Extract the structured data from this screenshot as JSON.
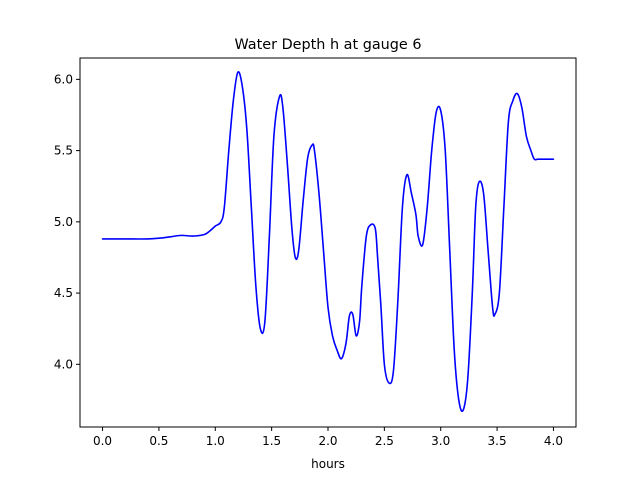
{
  "chart_data": {
    "type": "line",
    "title": "Water Depth h at gauge 6",
    "xlabel": "hours",
    "ylabel": "",
    "xlim": [
      -0.2,
      4.2
    ],
    "ylim": [
      3.56,
      6.15
    ],
    "xticks": [
      0.0,
      0.5,
      1.0,
      1.5,
      2.0,
      2.5,
      3.0,
      3.5,
      4.0
    ],
    "xtick_labels": [
      "0.0",
      "0.5",
      "1.0",
      "1.5",
      "2.0",
      "2.5",
      "3.0",
      "3.5",
      "4.0"
    ],
    "yticks": [
      4.0,
      4.5,
      5.0,
      5.5,
      6.0
    ],
    "ytick_labels": [
      "4.0",
      "4.5",
      "5.0",
      "5.5",
      "6.0"
    ],
    "grid": false,
    "series": [
      {
        "color": "#0000ff",
        "x": [
          0.0,
          0.2,
          0.4,
          0.5,
          0.6,
          0.7,
          0.8,
          0.9,
          0.95,
          1.0,
          1.05,
          1.08,
          1.12,
          1.16,
          1.2,
          1.24,
          1.28,
          1.32,
          1.36,
          1.4,
          1.44,
          1.48,
          1.52,
          1.57,
          1.6,
          1.64,
          1.68,
          1.71,
          1.74,
          1.78,
          1.82,
          1.86,
          1.88,
          1.92,
          1.96,
          2.0,
          2.04,
          2.08,
          2.12,
          2.16,
          2.19,
          2.22,
          2.25,
          2.28,
          2.3,
          2.34,
          2.38,
          2.42,
          2.44,
          2.47,
          2.5,
          2.54,
          2.58,
          2.62,
          2.66,
          2.7,
          2.74,
          2.78,
          2.8,
          2.84,
          2.88,
          2.92,
          2.96,
          3.0,
          3.04,
          3.08,
          3.12,
          3.16,
          3.2,
          3.24,
          3.28,
          3.31,
          3.34,
          3.38,
          3.42,
          3.46,
          3.48,
          3.52,
          3.56,
          3.6,
          3.64,
          3.68,
          3.72,
          3.76,
          3.8,
          3.83,
          3.86,
          3.9,
          3.94,
          3.97,
          4.0
        ],
        "values": [
          4.88,
          4.88,
          4.88,
          4.885,
          4.895,
          4.905,
          4.9,
          4.91,
          4.935,
          4.97,
          5.0,
          5.1,
          5.5,
          5.85,
          6.05,
          5.95,
          5.65,
          5.1,
          4.55,
          4.25,
          4.3,
          4.9,
          5.6,
          5.88,
          5.8,
          5.4,
          4.95,
          4.75,
          4.8,
          5.15,
          5.45,
          5.54,
          5.5,
          5.2,
          4.8,
          4.4,
          4.2,
          4.1,
          4.04,
          4.15,
          4.34,
          4.35,
          4.2,
          4.3,
          4.55,
          4.9,
          4.98,
          4.95,
          4.75,
          4.4,
          4.0,
          3.87,
          3.95,
          4.45,
          5.1,
          5.33,
          5.2,
          5.05,
          4.9,
          4.84,
          5.1,
          5.5,
          5.77,
          5.78,
          5.5,
          4.8,
          4.1,
          3.75,
          3.68,
          3.9,
          4.5,
          5.1,
          5.28,
          5.2,
          4.8,
          4.4,
          4.35,
          4.5,
          5.1,
          5.7,
          5.85,
          5.9,
          5.8,
          5.6,
          5.5,
          5.44,
          5.44,
          5.44,
          5.44,
          5.44,
          5.44
        ]
      }
    ]
  }
}
